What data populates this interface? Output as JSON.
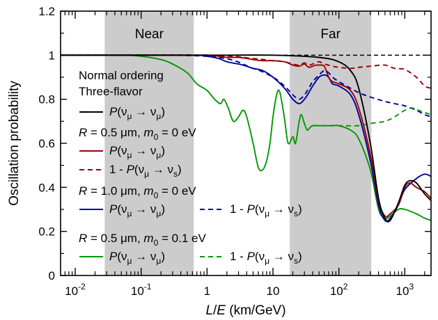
{
  "chart_data": {
    "type": "line",
    "xscale": "log",
    "xlim": [
      0.006,
      2500
    ],
    "ylim": [
      0,
      1.2
    ],
    "grid": false,
    "xlabel": "L/E (km/GeV)",
    "ylabel": "Oscillation probability",
    "x_ticks": [
      {
        "value": 0.01,
        "base": "10",
        "exp": "-2"
      },
      {
        "value": 0.1,
        "base": "10",
        "exp": "-1"
      },
      {
        "value": 1,
        "base": "1",
        "exp": ""
      },
      {
        "value": 10,
        "base": "10",
        "exp": ""
      },
      {
        "value": 100,
        "base": "10",
        "exp": "2"
      },
      {
        "value": 1000,
        "base": "10",
        "exp": "3"
      }
    ],
    "y_ticks": [
      "0",
      "0.2",
      "0.4",
      "0.6",
      "0.8",
      "1",
      "1.2"
    ],
    "y_tick_values": [
      0,
      0.2,
      0.4,
      0.6,
      0.8,
      1.0,
      1.2
    ],
    "regions": [
      {
        "label": "Near",
        "from": 0.028,
        "to": 0.63
      },
      {
        "label": "Far",
        "from": 18,
        "to": 310
      }
    ],
    "reference_line": {
      "y": 1.0,
      "style": "dashed",
      "color": "#000000"
    },
    "legend": {
      "heading1": "Normal ordering",
      "heading2": "Three-flavor",
      "groups": [
        {
          "pre": "R",
          "mid": " = 0.5 μm, ",
          "m": "m",
          "sub": "0",
          "post": " = 0 eV"
        },
        {
          "pre": "R",
          "mid": " = 1.0 μm, ",
          "m": "m",
          "sub": "0",
          "post": " = 0 eV"
        },
        {
          "pre": "R",
          "mid": " = 0.5 μm, ",
          "m": "m",
          "sub": "0",
          "post": " = 0.1 eV"
        }
      ],
      "p_mumu": {
        "P": "P",
        "open": "(ν",
        "s1": "μ",
        "arrow": " → ν",
        "s2": "μ",
        "close": ")"
      },
      "one_minus_p_mus": {
        "lead": "1 - ",
        "P": "P",
        "open": "(ν",
        "s1": "μ",
        "arrow": " → ν",
        "s2": "s",
        "close": ")"
      }
    },
    "series": [
      {
        "id": "three_flavor",
        "color": "#000000",
        "dash": "solid",
        "x": [
          0.006,
          1,
          10,
          50,
          100,
          150,
          200,
          300,
          400,
          500,
          600,
          800,
          1000,
          1200,
          1500,
          2000,
          2500
        ],
        "y": [
          1.0,
          1.0,
          1.0,
          0.99,
          0.97,
          0.93,
          0.85,
          0.6,
          0.35,
          0.26,
          0.25,
          0.33,
          0.41,
          0.43,
          0.42,
          0.37,
          0.34
        ]
      },
      {
        "id": "r05_p_mumu",
        "color": "#990000",
        "dash": "solid",
        "x": [
          0.006,
          0.5,
          1,
          1.5,
          2,
          3,
          4,
          5,
          7,
          10,
          15,
          20,
          25,
          30,
          35,
          40,
          45,
          50,
          60,
          70,
          80,
          100,
          150,
          200,
          300,
          400,
          500,
          600,
          800,
          1000,
          1200,
          1500,
          2000,
          2500
        ],
        "y": [
          1.0,
          1.0,
          1.0,
          0.995,
          0.99,
          0.99,
          0.985,
          0.98,
          0.975,
          0.975,
          0.97,
          0.955,
          0.95,
          0.96,
          0.945,
          0.95,
          0.955,
          0.955,
          0.95,
          0.9,
          0.88,
          0.87,
          0.84,
          0.76,
          0.55,
          0.34,
          0.27,
          0.28,
          0.32,
          0.4,
          0.42,
          0.4,
          0.38,
          0.35
        ]
      },
      {
        "id": "r05_one_minus",
        "color": "#990000",
        "dash": "dashed",
        "x": [
          0.006,
          1,
          5,
          10,
          15,
          20,
          25,
          30,
          35,
          40,
          50,
          60,
          80,
          100,
          150,
          200,
          300,
          500,
          700,
          1000,
          1500,
          2000,
          2500
        ],
        "y": [
          1.0,
          1.0,
          0.985,
          0.975,
          0.97,
          0.96,
          0.955,
          0.965,
          0.955,
          0.96,
          0.97,
          0.96,
          0.95,
          0.945,
          0.94,
          0.945,
          0.95,
          0.955,
          0.94,
          0.935,
          0.9,
          0.86,
          0.85
        ]
      },
      {
        "id": "r10_p_mumu",
        "color": "#000099",
        "dash": "solid",
        "x": [
          0.006,
          0.5,
          1,
          1.5,
          2,
          3,
          4,
          5,
          7,
          10,
          15,
          20,
          25,
          30,
          35,
          40,
          50,
          60,
          70,
          80,
          100,
          150,
          200,
          300,
          400,
          500,
          600,
          800,
          1000,
          1500,
          2000,
          2500
        ],
        "y": [
          1.0,
          1.0,
          0.995,
          0.985,
          0.97,
          0.96,
          0.95,
          0.94,
          0.93,
          0.9,
          0.85,
          0.8,
          0.78,
          0.8,
          0.83,
          0.86,
          0.9,
          0.91,
          0.9,
          0.87,
          0.86,
          0.82,
          0.73,
          0.52,
          0.32,
          0.25,
          0.26,
          0.32,
          0.39,
          0.44,
          0.46,
          0.45
        ]
      },
      {
        "id": "r10_one_minus",
        "color": "#000099",
        "dash": "dashed",
        "x": [
          0.006,
          1,
          5,
          10,
          15,
          20,
          25,
          30,
          35,
          40,
          50,
          60,
          70,
          80,
          100,
          150,
          200,
          300,
          500,
          700,
          1000,
          1500,
          2000,
          2500
        ],
        "y": [
          1.0,
          0.995,
          0.94,
          0.9,
          0.86,
          0.82,
          0.8,
          0.82,
          0.85,
          0.88,
          0.91,
          0.93,
          0.92,
          0.9,
          0.88,
          0.85,
          0.83,
          0.81,
          0.79,
          0.78,
          0.77,
          0.75,
          0.73,
          0.72
        ]
      },
      {
        "id": "r05m01_p_mumu",
        "color": "#009900",
        "dash": "solid",
        "x": [
          0.006,
          0.05,
          0.1,
          0.2,
          0.3,
          0.5,
          0.7,
          1,
          1.3,
          1.6,
          1.8,
          2.1,
          2.5,
          3,
          3.5,
          4,
          5,
          6,
          7,
          8,
          9,
          10,
          11,
          12,
          13,
          15,
          17,
          20,
          22,
          25,
          27,
          30,
          33,
          36,
          40,
          50,
          60,
          80,
          100,
          150,
          200,
          300,
          400,
          500,
          600,
          800,
          1000,
          1500,
          2000,
          2500
        ],
        "y": [
          1.0,
          1.0,
          0.995,
          0.98,
          0.96,
          0.92,
          0.87,
          0.84,
          0.8,
          0.78,
          0.8,
          0.76,
          0.7,
          0.72,
          0.75,
          0.72,
          0.6,
          0.49,
          0.48,
          0.52,
          0.6,
          0.72,
          0.8,
          0.84,
          0.82,
          0.71,
          0.6,
          0.63,
          0.6,
          0.7,
          0.73,
          0.69,
          0.66,
          0.67,
          0.68,
          0.68,
          0.68,
          0.68,
          0.68,
          0.66,
          0.62,
          0.48,
          0.3,
          0.26,
          0.27,
          0.3,
          0.3,
          0.28,
          0.26,
          0.25
        ]
      },
      {
        "id": "r05m01_one_minus",
        "color": "#009900",
        "dash": "dashed",
        "x": [
          40,
          60,
          100,
          200,
          300,
          500,
          700,
          1000,
          1300,
          1600,
          2000,
          2500
        ],
        "y": [
          0.68,
          0.68,
          0.68,
          0.68,
          0.69,
          0.7,
          0.72,
          0.75,
          0.76,
          0.75,
          0.74,
          0.73
        ]
      }
    ]
  }
}
